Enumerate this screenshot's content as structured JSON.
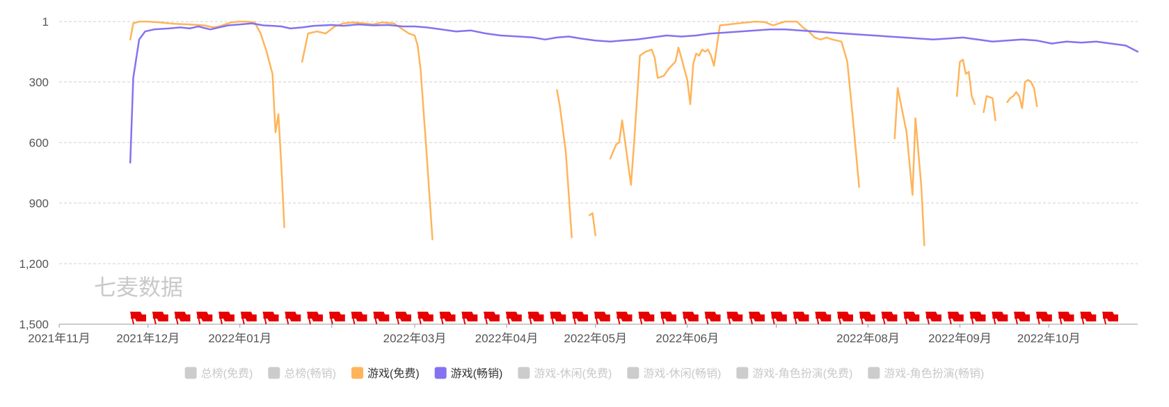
{
  "chart_data": {
    "type": "line",
    "y_inverted": true,
    "ylim": [
      1,
      1500
    ],
    "y_ticks": [
      1,
      300,
      600,
      900,
      1200,
      1500
    ],
    "y_tick_labels": [
      "1",
      "300",
      "600",
      "900",
      "1,200",
      "1,500"
    ],
    "x_range": [
      "2021-11-01",
      "2022-10-31"
    ],
    "x_ticks": [
      "2021-11-01",
      "2021-12-01",
      "2022-01-01",
      "2022-02-01",
      "2022-03-01",
      "2022-04-01",
      "2022-05-01",
      "2022-06-01",
      "2022-07-01",
      "2022-08-01",
      "2022-09-01",
      "2022-10-01"
    ],
    "x_tick_labels": [
      "2021年11月",
      "2021年12月",
      "2022年01月",
      "2022年03月",
      "2022年04月",
      "2022年05月",
      "2022年06月",
      "2022年08月",
      "2022年09月",
      "2022年10月"
    ],
    "x_tick_label_positions": [
      "2021-11-01",
      "2021-12-01",
      "2022-01-01",
      "2022-03-01",
      "2022-04-01",
      "2022-05-01",
      "2022-06-01",
      "2022-08-01",
      "2022-09-01",
      "2022-10-01"
    ],
    "grid": {
      "horizontal": true,
      "style": "dashed"
    },
    "legend_position": "bottom-center",
    "legend": [
      {
        "label": "总榜(免费)",
        "active": false,
        "color": "#cccccc"
      },
      {
        "label": "总榜(畅销)",
        "active": false,
        "color": "#cccccc"
      },
      {
        "label": "游戏(免费)",
        "active": true,
        "color": "#ffb45a"
      },
      {
        "label": "游戏(畅销)",
        "active": true,
        "color": "#8472f0"
      },
      {
        "label": "游戏-休闲(免费)",
        "active": false,
        "color": "#cccccc"
      },
      {
        "label": "游戏-休闲(畅销)",
        "active": false,
        "color": "#cccccc"
      },
      {
        "label": "游戏-角色扮演(免费)",
        "active": false,
        "color": "#cccccc"
      },
      {
        "label": "游戏-角色扮演(畅销)",
        "active": false,
        "color": "#cccccc"
      }
    ],
    "series": [
      {
        "name": "游戏(免费)",
        "color": "#ffb45a",
        "segments": [
          [
            [
              "2021-11-25",
              90
            ],
            [
              "2021-11-26",
              10
            ],
            [
              "2021-11-28",
              1
            ],
            [
              "2021-12-01",
              1
            ],
            [
              "2021-12-05",
              5
            ],
            [
              "2021-12-10",
              12
            ],
            [
              "2021-12-15",
              15
            ],
            [
              "2021-12-18",
              18
            ],
            [
              "2021-12-20",
              20
            ],
            [
              "2021-12-23",
              30
            ],
            [
              "2021-12-25",
              25
            ],
            [
              "2021-12-27",
              15
            ],
            [
              "2021-12-29",
              5
            ],
            [
              "2022-01-01",
              1
            ],
            [
              "2022-01-03",
              1
            ],
            [
              "2022-01-06",
              5
            ],
            [
              "2022-01-08",
              60
            ],
            [
              "2022-01-10",
              150
            ],
            [
              "2022-01-12",
              260
            ],
            [
              "2022-01-13",
              550
            ],
            [
              "2022-01-14",
              460
            ],
            [
              "2022-01-15",
              720
            ],
            [
              "2022-01-16",
              1020
            ]
          ],
          [
            [
              "2022-01-22",
              200
            ],
            [
              "2022-01-24",
              60
            ],
            [
              "2022-01-27",
              50
            ],
            [
              "2022-01-30",
              60
            ],
            [
              "2022-02-02",
              25
            ],
            [
              "2022-02-05",
              10
            ],
            [
              "2022-02-08",
              5
            ],
            [
              "2022-02-12",
              10
            ],
            [
              "2022-02-15",
              15
            ],
            [
              "2022-02-18",
              5
            ],
            [
              "2022-02-22",
              10
            ],
            [
              "2022-02-25",
              40
            ],
            [
              "2022-02-27",
              60
            ],
            [
              "2022-03-01",
              70
            ],
            [
              "2022-03-02",
              120
            ],
            [
              "2022-03-03",
              240
            ],
            [
              "2022-03-05",
              650
            ],
            [
              "2022-03-07",
              1080
            ]
          ],
          [
            [
              "2022-04-18",
              340
            ],
            [
              "2022-04-19",
              420
            ],
            [
              "2022-04-21",
              650
            ],
            [
              "2022-04-23",
              1070
            ]
          ],
          [
            [
              "2022-04-29",
              960
            ],
            [
              "2022-04-30",
              950
            ],
            [
              "2022-05-01",
              1060
            ]
          ],
          [
            [
              "2022-05-06",
              680
            ],
            [
              "2022-05-08",
              610
            ],
            [
              "2022-05-09",
              600
            ],
            [
              "2022-05-10",
              490
            ],
            [
              "2022-05-13",
              810
            ],
            [
              "2022-05-14",
              610
            ],
            [
              "2022-05-16",
              170
            ],
            [
              "2022-05-18",
              150
            ],
            [
              "2022-05-19",
              145
            ],
            [
              "2022-05-20",
              140
            ],
            [
              "2022-05-21",
              180
            ],
            [
              "2022-05-22",
              280
            ],
            [
              "2022-05-24",
              270
            ],
            [
              "2022-05-26",
              230
            ],
            [
              "2022-05-28",
              200
            ],
            [
              "2022-05-29",
              130
            ],
            [
              "2022-05-30",
              180
            ],
            [
              "2022-06-01",
              290
            ],
            [
              "2022-06-02",
              410
            ],
            [
              "2022-06-03",
              210
            ],
            [
              "2022-06-04",
              160
            ],
            [
              "2022-06-05",
              170
            ],
            [
              "2022-06-06",
              140
            ],
            [
              "2022-06-07",
              150
            ],
            [
              "2022-06-08",
              140
            ],
            [
              "2022-06-09",
              170
            ],
            [
              "2022-06-10",
              220
            ],
            [
              "2022-06-12",
              20
            ],
            [
              "2022-06-15",
              15
            ],
            [
              "2022-06-18",
              10
            ],
            [
              "2022-06-21",
              5
            ],
            [
              "2022-06-24",
              1
            ],
            [
              "2022-06-27",
              3
            ],
            [
              "2022-06-30",
              20
            ],
            [
              "2022-07-02",
              10
            ],
            [
              "2022-07-04",
              1
            ],
            [
              "2022-07-08",
              1
            ],
            [
              "2022-07-10",
              30
            ],
            [
              "2022-07-12",
              50
            ],
            [
              "2022-07-14",
              80
            ],
            [
              "2022-07-16",
              90
            ],
            [
              "2022-07-18",
              80
            ],
            [
              "2022-07-20",
              90
            ],
            [
              "2022-07-23",
              100
            ],
            [
              "2022-07-25",
              200
            ],
            [
              "2022-07-27",
              500
            ],
            [
              "2022-07-29",
              820
            ]
          ],
          [
            [
              "2022-08-10",
              580
            ],
            [
              "2022-08-11",
              330
            ],
            [
              "2022-08-14",
              550
            ],
            [
              "2022-08-16",
              860
            ],
            [
              "2022-08-17",
              480
            ],
            [
              "2022-08-19",
              820
            ],
            [
              "2022-08-20",
              1110
            ]
          ],
          [
            [
              "2022-08-31",
              370
            ],
            [
              "2022-09-01",
              200
            ],
            [
              "2022-09-02",
              190
            ],
            [
              "2022-09-03",
              260
            ],
            [
              "2022-09-04",
              250
            ],
            [
              "2022-09-05",
              370
            ],
            [
              "2022-09-06",
              410
            ]
          ],
          [
            [
              "2022-09-09",
              450
            ],
            [
              "2022-09-10",
              370
            ],
            [
              "2022-09-12",
              380
            ],
            [
              "2022-09-13",
              490
            ]
          ],
          [
            [
              "2022-09-17",
              400
            ],
            [
              "2022-09-18",
              380
            ],
            [
              "2022-09-19",
              370
            ],
            [
              "2022-09-20",
              350
            ],
            [
              "2022-09-21",
              370
            ],
            [
              "2022-09-22",
              430
            ],
            [
              "2022-09-23",
              300
            ],
            [
              "2022-09-24",
              290
            ],
            [
              "2022-09-25",
              300
            ],
            [
              "2022-09-26",
              330
            ],
            [
              "2022-09-27",
              420
            ]
          ]
        ]
      },
      {
        "name": "游戏(畅销)",
        "color": "#8472f0",
        "segments": [
          [
            [
              "2021-11-25",
              700
            ],
            [
              "2021-11-26",
              280
            ],
            [
              "2021-11-28",
              90
            ],
            [
              "2021-11-30",
              50
            ],
            [
              "2021-12-03",
              40
            ],
            [
              "2021-12-08",
              35
            ],
            [
              "2021-12-12",
              30
            ],
            [
              "2021-12-15",
              35
            ],
            [
              "2021-12-18",
              25
            ],
            [
              "2021-12-22",
              40
            ],
            [
              "2021-12-25",
              30
            ],
            [
              "2021-12-28",
              20
            ],
            [
              "2022-01-01",
              15
            ],
            [
              "2022-01-05",
              10
            ],
            [
              "2022-01-09",
              20
            ],
            [
              "2022-01-12",
              22
            ],
            [
              "2022-01-15",
              25
            ],
            [
              "2022-01-18",
              35
            ],
            [
              "2022-01-22",
              30
            ],
            [
              "2022-01-26",
              22
            ],
            [
              "2022-02-01",
              18
            ],
            [
              "2022-02-05",
              22
            ],
            [
              "2022-02-10",
              15
            ],
            [
              "2022-02-15",
              20
            ],
            [
              "2022-02-20",
              18
            ],
            [
              "2022-02-25",
              25
            ],
            [
              "2022-03-01",
              25
            ],
            [
              "2022-03-05",
              30
            ],
            [
              "2022-03-10",
              40
            ],
            [
              "2022-03-15",
              50
            ],
            [
              "2022-03-20",
              45
            ],
            [
              "2022-03-25",
              60
            ],
            [
              "2022-03-30",
              70
            ],
            [
              "2022-04-05",
              75
            ],
            [
              "2022-04-10",
              80
            ],
            [
              "2022-04-14",
              90
            ],
            [
              "2022-04-18",
              80
            ],
            [
              "2022-04-22",
              75
            ],
            [
              "2022-04-26",
              85
            ],
            [
              "2022-05-01",
              95
            ],
            [
              "2022-05-06",
              100
            ],
            [
              "2022-05-10",
              95
            ],
            [
              "2022-05-15",
              90
            ],
            [
              "2022-05-20",
              80
            ],
            [
              "2022-05-25",
              70
            ],
            [
              "2022-05-30",
              75
            ],
            [
              "2022-06-04",
              70
            ],
            [
              "2022-06-09",
              60
            ],
            [
              "2022-06-14",
              55
            ],
            [
              "2022-06-19",
              50
            ],
            [
              "2022-06-24",
              45
            ],
            [
              "2022-06-29",
              40
            ],
            [
              "2022-07-04",
              40
            ],
            [
              "2022-07-09",
              45
            ],
            [
              "2022-07-14",
              50
            ],
            [
              "2022-07-19",
              55
            ],
            [
              "2022-07-24",
              60
            ],
            [
              "2022-07-29",
              65
            ],
            [
              "2022-08-03",
              70
            ],
            [
              "2022-08-08",
              75
            ],
            [
              "2022-08-13",
              80
            ],
            [
              "2022-08-18",
              85
            ],
            [
              "2022-08-23",
              90
            ],
            [
              "2022-08-28",
              85
            ],
            [
              "2022-09-02",
              80
            ],
            [
              "2022-09-07",
              90
            ],
            [
              "2022-09-12",
              100
            ],
            [
              "2022-09-17",
              95
            ],
            [
              "2022-09-22",
              90
            ],
            [
              "2022-09-27",
              95
            ],
            [
              "2022-10-02",
              110
            ],
            [
              "2022-10-07",
              100
            ],
            [
              "2022-10-12",
              105
            ],
            [
              "2022-10-17",
              100
            ],
            [
              "2022-10-22",
              110
            ],
            [
              "2022-10-27",
              120
            ],
            [
              "2022-10-31",
              150
            ]
          ]
        ]
      }
    ],
    "event_markers": {
      "count": 45,
      "color": "#e60000"
    },
    "watermark": "七麦数据"
  }
}
